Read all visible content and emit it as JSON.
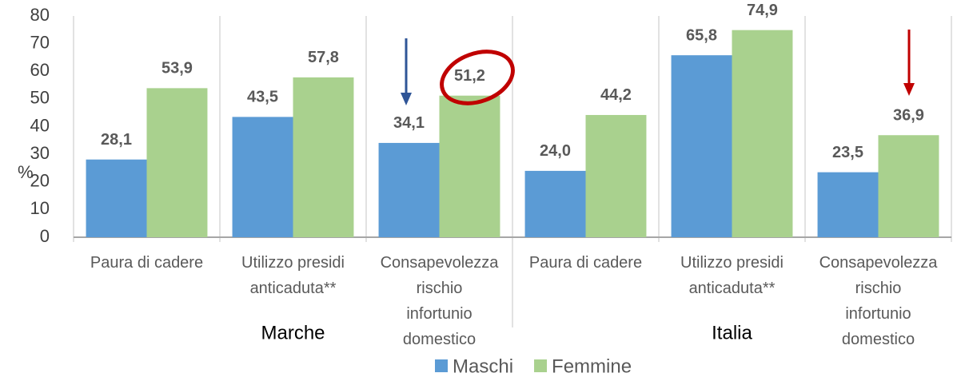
{
  "chart_data": {
    "type": "bar",
    "y_label": "%",
    "categories": [
      "Paura di cadere",
      "Utilizzo presidi\nanticaduta**",
      "Consapevolezza\nrischio\ninfortunio\ndomestico",
      "Paura di cadere",
      "Utilizzo presidi\nanticaduta**",
      "Consapevolezza\nrischio\ninfortunio\ndomestico"
    ],
    "groups": [
      {
        "name": "Marche",
        "size": 3
      },
      {
        "name": "Italia",
        "size": 3
      }
    ],
    "series": [
      {
        "name": "Maschi",
        "color": "#5b9bd5",
        "values": [
          28.1,
          43.5,
          34.1,
          24.0,
          65.8,
          23.5
        ],
        "value_labels": [
          "28,1",
          "43,5",
          "34,1",
          "24,0",
          "65,8",
          "23,5"
        ]
      },
      {
        "name": "Femmine",
        "color": "#a9d18e",
        "values": [
          53.9,
          57.8,
          51.2,
          44.2,
          74.9,
          36.9
        ],
        "value_labels": [
          "53,9",
          "57,8",
          "51,2",
          "44,2",
          "74,9",
          "36,9"
        ]
      }
    ],
    "ylim": [
      0,
      80
    ],
    "yticks": [
      0,
      10,
      20,
      30,
      40,
      50,
      60,
      70,
      80
    ],
    "grid": false,
    "legend": "bottom"
  }
}
